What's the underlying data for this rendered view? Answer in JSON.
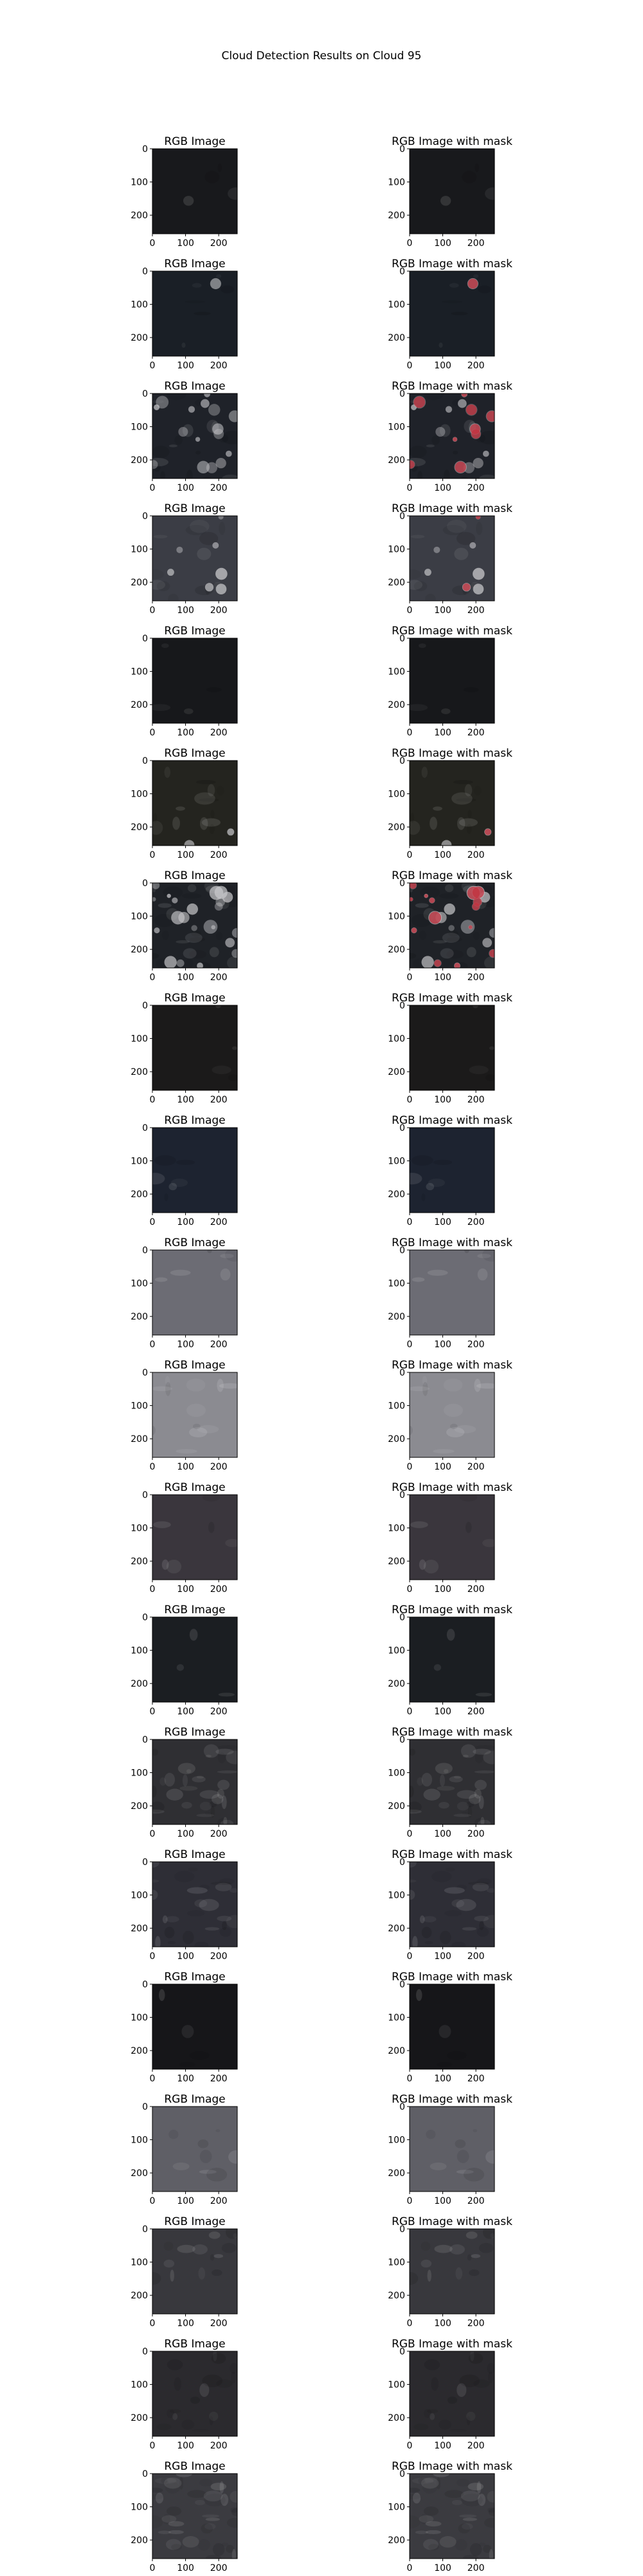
{
  "figure": {
    "title": "Cloud Detection Results on Cloud 95"
  },
  "chart_data": {
    "type": "image_grid",
    "rows": 20,
    "columns": [
      "RGB Image",
      "RGB Image with mask"
    ],
    "panel_titles": {
      "left": "RGB Image",
      "right": "RGB Image with mask"
    },
    "x_ticks": [
      0,
      100,
      200
    ],
    "y_ticks": [
      0,
      100,
      200
    ],
    "image_extent": [
      0,
      256
    ],
    "panels": [
      {
        "base": "#18191c",
        "texture": 0.03,
        "bright": 0.0,
        "mask": 0.0
      },
      {
        "base": "#1a1f26",
        "texture": 0.05,
        "bright": 0.03,
        "mask": 0.12
      },
      {
        "base": "#1f2229",
        "texture": 0.15,
        "bright": 0.4,
        "mask": 0.55
      },
      {
        "base": "#3b3d45",
        "texture": 0.12,
        "bright": 0.18,
        "mask": 0.35
      },
      {
        "base": "#17181b",
        "texture": 0.03,
        "bright": 0.0,
        "mask": 0.0
      },
      {
        "base": "#24241f",
        "texture": 0.12,
        "bright": 0.06,
        "mask": 0.04
      },
      {
        "base": "#1f2227",
        "texture": 0.22,
        "bright": 0.55,
        "mask": 0.65
      },
      {
        "base": "#1b1a1a",
        "texture": 0.03,
        "bright": 0.0,
        "mask": 0.0
      },
      {
        "base": "#1d2330",
        "texture": 0.05,
        "bright": 0.0,
        "mask": 0.0
      },
      {
        "base": "#6c6c74",
        "texture": 0.05,
        "bright": 0.0,
        "mask": 0.0
      },
      {
        "base": "#8b8b91",
        "texture": 0.1,
        "bright": 0.0,
        "mask": 0.0
      },
      {
        "base": "#3a363d",
        "texture": 0.05,
        "bright": 0.0,
        "mask": 0.0
      },
      {
        "base": "#1b1e22",
        "texture": 0.03,
        "bright": 0.0,
        "mask": 0.0
      },
      {
        "base": "#2f2f33",
        "texture": 0.28,
        "bright": 0.0,
        "mask": 0.0
      },
      {
        "base": "#2e2e36",
        "texture": 0.22,
        "bright": 0.0,
        "mask": 0.0
      },
      {
        "base": "#161619",
        "texture": 0.03,
        "bright": 0.0,
        "mask": 0.0
      },
      {
        "base": "#5f5f66",
        "texture": 0.07,
        "bright": 0.0,
        "mask": 0.0
      },
      {
        "base": "#38383d",
        "texture": 0.12,
        "bright": 0.0,
        "mask": 0.0
      },
      {
        "base": "#2b2a2e",
        "texture": 0.15,
        "bright": 0.0,
        "mask": 0.0
      },
      {
        "base": "#3b3b40",
        "texture": 0.35,
        "bright": 0.0,
        "mask": 0.0
      }
    ]
  }
}
